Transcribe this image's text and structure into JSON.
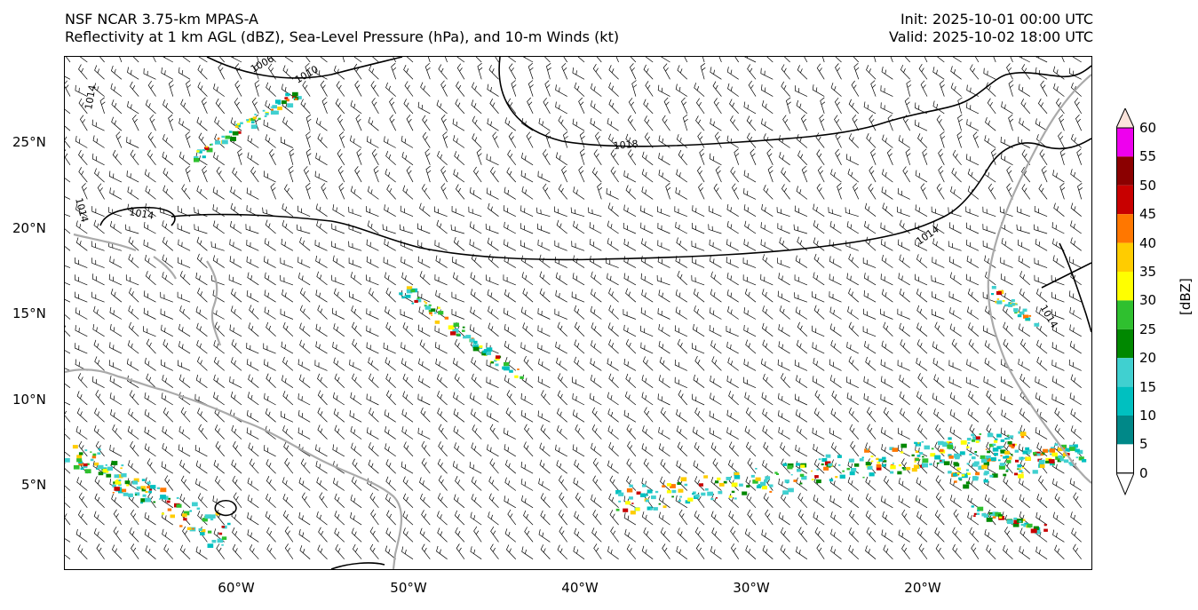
{
  "header": {
    "title_line1": "NSF NCAR 3.75-km MPAS-A",
    "title_line2": "Reflectivity at 1 km AGL (dBZ), Sea-Level Pressure (hPa), and 10-m Winds (kt)",
    "init": "Init: 2025-10-01 00:00 UTC",
    "valid": "Valid: 2025-10-02 18:00 UTC"
  },
  "map": {
    "lat_labels": [
      "25°N",
      "20°N",
      "15°N",
      "10°N",
      "5°N"
    ],
    "lon_labels": [
      "60°W",
      "50°W",
      "40°W",
      "30°W",
      "20°W"
    ],
    "lat_values": [
      25,
      20,
      15,
      10,
      5
    ],
    "lon_values": [
      -60,
      -50,
      -40,
      -30,
      -20
    ],
    "extent": {
      "lon_min": -70,
      "lon_max": -10.5,
      "lat_min": 0,
      "lat_max": 30
    },
    "contour_labels": [
      "1006",
      "1010",
      "1014",
      "1018",
      "1014",
      "1014",
      "1014",
      "1014"
    ],
    "coastline_color": "#aaaaaa",
    "contour_color": "#000000",
    "barb_color": "#000000"
  },
  "colorbar": {
    "label": "[dBZ]",
    "ticks": [
      "60",
      "55",
      "50",
      "45",
      "40",
      "35",
      "30",
      "25",
      "20",
      "15",
      "10",
      "5",
      "0"
    ],
    "colors": [
      "#fbe4dc",
      "#ee00ee",
      "#8b0000",
      "#c80000",
      "#ff7700",
      "#ffcc00",
      "#ffff00",
      "#2fc02f",
      "#008800",
      "#40d0d0",
      "#00c0c0",
      "#008888",
      "#ffffff"
    ]
  }
}
